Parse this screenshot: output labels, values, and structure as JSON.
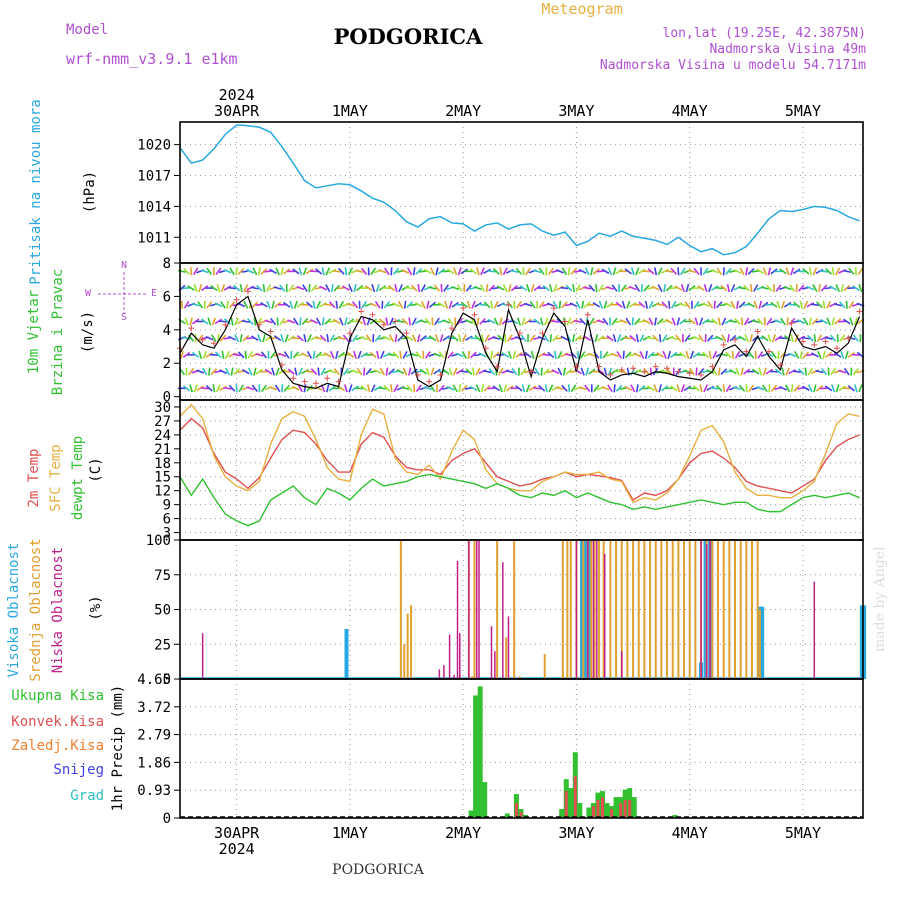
{
  "header": {
    "model_label": "Model",
    "model_name": "wrf-nmm_v3.9.1 e1km",
    "station": "PODGORICA",
    "meteogram_label": "Meteogram",
    "lonlat": "lon,lat (19.25E, 42.3875N)",
    "elevation": "Nadmorska Visina 49m",
    "model_elevation": "Nadmorska Visina u modelu 54.7171m",
    "footer": "PODGORICA",
    "credit": "made by Angel"
  },
  "dates": {
    "year": "2024",
    "labels": [
      "30APR",
      "1MAY",
      "2MAY",
      "3MAY",
      "4MAY",
      "5MAY"
    ],
    "day_positions": [
      0.5,
      1.5,
      2.5,
      3.5,
      4.5,
      5.5
    ],
    "x_range_days": [
      0,
      6.03
    ]
  },
  "colors": {
    "pressure": "#29a8e0",
    "wind_speed": "#000000",
    "gust": "#e05050",
    "temp2m": "#e05050",
    "sfc_temp": "#e8b040",
    "dew": "#30c030",
    "high_cloud": "#29a8e0",
    "mid_cloud": "#e0a030",
    "low_cloud": "#c0208a",
    "total_rain": "#30c030",
    "conv_rain": "#e05050",
    "strat_rain": "#f08030",
    "snow": "#4040e0",
    "graupel": "#30c0c0",
    "grid": "#999999"
  },
  "labels": {
    "pressure": [
      "Pritisak na nivou mora",
      "(hPa)"
    ],
    "wind": [
      "10m Vjetar",
      "Brzina i Pravac",
      "(m/s)"
    ],
    "wind_compass": [
      "N",
      "S",
      "W",
      "E"
    ],
    "temp": [
      "2m Temp",
      "SFC Temp",
      "dewpt Temp",
      "(C)"
    ],
    "cloud": [
      "Visoka Oblacnost",
      "Srednja Oblacnost",
      "Niska Oblacnost",
      "(%)"
    ],
    "precip": [
      "Ukupna Kisa",
      "Konvek.Kisa",
      "Zaledj.Kisa",
      "Snijeg",
      "Grad",
      "1hr Precip (mm)"
    ]
  },
  "chart_data": [
    {
      "type": "line",
      "name": "pressure",
      "ylabel": "Pritisak na nivou mora (hPa)",
      "yticks": [
        "1020",
        "1017",
        "1014",
        "1011"
      ],
      "ytick_values": [
        1020,
        1017,
        1014,
        1011
      ],
      "ylim": [
        1008.5,
        1022.2
      ],
      "x": [
        0.0,
        0.1,
        0.2,
        0.3,
        0.4,
        0.5,
        0.55,
        0.7,
        0.8,
        0.9,
        1.0,
        1.1,
        1.2,
        1.3,
        1.4,
        1.5,
        1.6,
        1.7,
        1.8,
        1.9,
        2.0,
        2.1,
        2.2,
        2.3,
        2.4,
        2.5,
        2.6,
        2.7,
        2.8,
        2.9,
        3.0,
        3.1,
        3.2,
        3.3,
        3.4,
        3.5,
        3.6,
        3.7,
        3.8,
        3.9,
        4.0,
        4.1,
        4.2,
        4.3,
        4.4,
        4.5,
        4.6,
        4.7,
        4.8,
        4.9,
        5.0,
        5.1,
        5.2,
        5.3,
        5.4,
        5.5,
        5.6,
        5.7,
        5.8,
        5.9,
        6.0
      ],
      "y": [
        1019.7,
        1018.2,
        1018.5,
        1019.6,
        1021,
        1021.9,
        1021.9,
        1021.7,
        1021.2,
        1019.8,
        1018.2,
        1016.5,
        1015.8,
        1016,
        1016.2,
        1016.1,
        1015.5,
        1014.8,
        1014.4,
        1013.6,
        1012.5,
        1012,
        1012.8,
        1013,
        1012.4,
        1012.3,
        1011.6,
        1012.2,
        1012.4,
        1011.8,
        1012.2,
        1012.3,
        1011.6,
        1011.2,
        1011.5,
        1010.2,
        1010.6,
        1011.4,
        1011.1,
        1011.6,
        1011.1,
        1010.9,
        1010.7,
        1010.3,
        1011,
        1010.2,
        1009.6,
        1009.9,
        1009.3,
        1009.5,
        1010.1,
        1011.4,
        1012.8,
        1013.6,
        1013.5,
        1013.7,
        1014,
        1013.9,
        1013.6,
        1013,
        1012.6
      ]
    },
    {
      "type": "line",
      "name": "wind",
      "ylabel": "10m Vjetar Brzina i Pravac (m/s)",
      "yticks": [
        "8",
        "6",
        "4",
        "2",
        "0"
      ],
      "ytick_values": [
        8,
        6,
        4,
        2,
        0
      ],
      "ylim": [
        -0.2,
        8
      ],
      "x": [
        0.0,
        0.1,
        0.2,
        0.3,
        0.4,
        0.5,
        0.6,
        0.7,
        0.8,
        0.9,
        1.0,
        1.1,
        1.2,
        1.3,
        1.4,
        1.5,
        1.6,
        1.7,
        1.8,
        1.9,
        2.0,
        2.1,
        2.2,
        2.3,
        2.4,
        2.5,
        2.6,
        2.7,
        2.8,
        2.9,
        3.0,
        3.1,
        3.2,
        3.3,
        3.4,
        3.5,
        3.6,
        3.7,
        3.8,
        3.9,
        4.0,
        4.1,
        4.2,
        4.3,
        4.4,
        4.5,
        4.6,
        4.7,
        4.8,
        4.9,
        5.0,
        5.1,
        5.2,
        5.3,
        5.4,
        5.5,
        5.6,
        5.7,
        5.8,
        5.9,
        6.0
      ],
      "y": [
        2.6,
        3.8,
        3.1,
        2.9,
        4.0,
        5.5,
        6.0,
        4.0,
        3.6,
        1.6,
        0.8,
        0.6,
        0.5,
        0.8,
        0.6,
        3.5,
        4.8,
        4.6,
        4.0,
        4.2,
        3.5,
        1.0,
        0.6,
        1.0,
        3.8,
        5.0,
        4.6,
        2.6,
        1.5,
        5.2,
        3.5,
        1.2,
        3.5,
        5.0,
        4.2,
        1.5,
        4.6,
        1.5,
        1.0,
        1.3,
        1.4,
        1.2,
        1.5,
        1.4,
        1.2,
        1.1,
        1.0,
        1.5,
        2.8,
        3.1,
        2.4,
        3.6,
        2.4,
        1.6,
        4.1,
        3.0,
        2.8,
        3.0,
        2.6,
        3.2,
        4.8
      ]
    },
    {
      "type": "line",
      "name": "temperature",
      "ylabel": "2m Temp / SFC Temp / dewpt Temp (C)",
      "yticks": [
        "30",
        "27",
        "24",
        "21",
        "18",
        "15",
        "12",
        "9",
        "6",
        "3"
      ],
      "ytick_values": [
        30,
        27,
        24,
        21,
        18,
        15,
        12,
        9,
        6,
        3
      ],
      "ylim": [
        1.4,
        31.5
      ],
      "x": [
        0.0,
        0.1,
        0.2,
        0.3,
        0.4,
        0.5,
        0.6,
        0.7,
        0.8,
        0.9,
        1.0,
        1.1,
        1.2,
        1.3,
        1.4,
        1.5,
        1.6,
        1.7,
        1.8,
        1.9,
        2.0,
        2.1,
        2.2,
        2.3,
        2.4,
        2.5,
        2.6,
        2.7,
        2.8,
        2.9,
        3.0,
        3.1,
        3.2,
        3.3,
        3.4,
        3.5,
        3.6,
        3.7,
        3.8,
        3.9,
        4.0,
        4.1,
        4.2,
        4.3,
        4.4,
        4.5,
        4.6,
        4.7,
        4.8,
        4.9,
        5.0,
        5.1,
        5.2,
        5.3,
        5.4,
        5.5,
        5.6,
        5.7,
        5.8,
        5.9,
        6.0
      ],
      "series": [
        {
          "name": "2m Temp",
          "values": [
            25,
            27.5,
            25.5,
            20,
            16,
            14.5,
            12.5,
            14.8,
            19,
            23,
            25,
            24.5,
            22,
            18.5,
            16,
            16,
            22,
            24.5,
            23.5,
            19.5,
            17,
            16.5,
            16.5,
            15.5,
            18.5,
            20,
            21,
            18,
            15,
            14,
            13,
            13.5,
            14.5,
            15,
            16,
            15,
            15.5,
            15.2,
            14.8,
            14.2,
            10,
            11.5,
            11,
            12,
            14.5,
            18,
            20,
            20.5,
            19,
            17,
            14,
            13,
            12.5,
            12,
            11.5,
            13,
            14.5,
            18.5,
            21.5,
            23,
            24
          ]
        },
        {
          "name": "SFC Temp",
          "values": [
            28,
            30.5,
            27.5,
            19.5,
            15,
            13,
            12,
            14,
            22,
            27.5,
            29,
            28,
            23,
            17,
            14.5,
            14,
            24,
            29.5,
            28.5,
            19,
            16,
            15.5,
            17.5,
            14.5,
            20.5,
            25,
            23,
            16.5,
            13.5,
            12.5,
            12,
            12,
            14,
            15,
            16,
            15.5,
            15.5,
            16,
            14.5,
            14,
            9.5,
            10.5,
            10,
            11.5,
            14.5,
            19.5,
            25,
            26,
            22.5,
            16,
            12.5,
            11,
            11,
            10.5,
            10.5,
            12,
            14,
            20,
            26.5,
            28.5,
            28
          ]
        },
        {
          "name": "dewpt Temp",
          "values": [
            15,
            11,
            14.5,
            10.5,
            7,
            5.5,
            4.5,
            5.5,
            10,
            11.5,
            13,
            10.5,
            9,
            12.5,
            11.5,
            10,
            12.5,
            14.5,
            13,
            13.5,
            14,
            15,
            15.5,
            15,
            14.5,
            14,
            13.5,
            12.5,
            13.5,
            12.5,
            11,
            10.5,
            11.5,
            11,
            12,
            10.5,
            11.5,
            10.5,
            9.5,
            9,
            8,
            8.5,
            8,
            8.5,
            9,
            9.5,
            10,
            9.5,
            9,
            9.5,
            9.5,
            8,
            7.5,
            7.5,
            9,
            10.5,
            11,
            10.5,
            11,
            11.5,
            10.5
          ]
        }
      ]
    },
    {
      "type": "bar",
      "name": "cloud",
      "ylabel": "Visoka / Srednja / Niska Oblacnost (%)",
      "yticks": [
        "100",
        "75",
        "50",
        "25",
        "0"
      ],
      "ytick_values": [
        100,
        75,
        50,
        25,
        0
      ],
      "ylim": [
        0,
        100
      ],
      "series": [
        {
          "name": "Visoka Oblacnost",
          "x": [
            1.47,
            3.55,
            3.57,
            3.59,
            3.62,
            4.6,
            4.64,
            4.68,
            5.12,
            5.14,
            6.02,
            6.04
          ],
          "values": [
            36,
            100,
            100,
            100,
            100,
            12,
            100,
            100,
            52,
            52,
            53,
            53
          ]
        },
        {
          "name": "Srednja Oblacnost",
          "x": [
            1.95,
            1.98,
            2.01,
            2.04,
            2.47,
            2.55,
            2.58,
            2.6,
            2.8,
            2.88,
            2.95,
            3.0,
            3.22,
            3.38,
            3.42,
            3.45,
            3.5,
            3.56,
            3.6,
            3.63,
            3.66,
            3.7,
            3.74,
            3.8,
            3.85,
            3.9,
            3.95,
            4.0,
            4.05,
            4.1,
            4.15,
            4.2,
            4.25,
            4.3,
            4.35,
            4.4,
            4.45,
            4.5,
            4.55,
            4.6,
            4.65,
            4.7,
            4.75,
            4.8,
            4.85,
            4.9,
            4.95,
            5.0,
            5.05,
            5.1,
            5.12
          ],
          "values": [
            100,
            25,
            47,
            53,
            3,
            100,
            2,
            100,
            100,
            30,
            100,
            2,
            18,
            100,
            100,
            100,
            100,
            100,
            100,
            100,
            100,
            100,
            100,
            100,
            100,
            100,
            100,
            100,
            100,
            100,
            100,
            100,
            100,
            100,
            100,
            100,
            100,
            100,
            100,
            100,
            100,
            100,
            100,
            100,
            100,
            100,
            100,
            100,
            100,
            100,
            50
          ]
        },
        {
          "name": "Niska Oblacnost",
          "x": [
            0.2,
            2.29,
            2.33,
            2.38,
            2.42,
            2.45,
            2.47,
            2.55,
            2.62,
            2.64,
            2.75,
            2.78,
            2.85,
            2.9,
            3.5,
            3.6,
            3.65,
            3.68,
            3.75,
            3.9,
            4.6,
            4.65,
            4.68,
            5.6
          ],
          "values": [
            33,
            7,
            10,
            32,
            3,
            85,
            33,
            100,
            100,
            100,
            38,
            20,
            84,
            45,
            100,
            100,
            100,
            100,
            90,
            20,
            100,
            97,
            100,
            70
          ]
        }
      ]
    },
    {
      "type": "bar",
      "name": "precipitation",
      "ylabel": "1hr Precip (mm)",
      "yticks": [
        "4.65",
        "3.72",
        "2.79",
        "1.86",
        "0.93",
        "0"
      ],
      "ytick_values": [
        4.65,
        3.72,
        2.79,
        1.86,
        0.93,
        0
      ],
      "ylim": [
        0,
        4.65
      ],
      "series": [
        {
          "name": "Ukupna Kisa",
          "x": [
            2.57,
            2.61,
            2.65,
            2.69,
            2.73,
            2.77,
            2.81,
            2.85,
            2.89,
            2.93,
            2.97,
            3.01,
            3.05,
            3.09,
            3.13,
            3.17,
            3.21,
            3.25,
            3.29,
            3.33,
            3.37,
            3.41,
            3.45,
            3.49,
            3.53,
            3.57,
            3.61,
            3.65,
            3.69,
            3.73,
            3.77,
            3.81,
            3.85,
            3.89,
            3.93,
            3.97,
            4.01,
            4.05,
            4.09,
            4.13,
            4.17,
            4.21,
            4.25,
            4.29,
            4.33,
            4.37,
            4.41,
            4.45,
            4.49,
            4.53,
            4.57
          ],
          "values": [
            0.25,
            4.1,
            4.4,
            1.2,
            0.0,
            0.0,
            0.0,
            0.0,
            0.15,
            0.0,
            0.8,
            0.3,
            0.1,
            0.0,
            0.0,
            0.0,
            0.0,
            0.0,
            0.0,
            0.0,
            0.3,
            1.3,
            1.0,
            2.2,
            0.5,
            0.0,
            0.35,
            0.5,
            0.85,
            0.9,
            0.5,
            0.4,
            0.7,
            0.7,
            0.95,
            1.0,
            0.7,
            0.0,
            0.0,
            0.0,
            0.0,
            0.0,
            0.0,
            0.0,
            0.0,
            0.1,
            0.0,
            0.0,
            0.0,
            0.0,
            0.0
          ]
        },
        {
          "name": "Konvek.Kisa",
          "x": [
            2.97,
            3.01,
            3.41,
            3.49,
            3.65,
            3.69,
            3.73,
            3.81,
            3.89,
            3.93,
            3.97
          ],
          "values": [
            0.5,
            0.2,
            0.9,
            1.4,
            0.4,
            0.6,
            0.7,
            0.3,
            0.5,
            0.6,
            0.6
          ]
        }
      ]
    }
  ]
}
